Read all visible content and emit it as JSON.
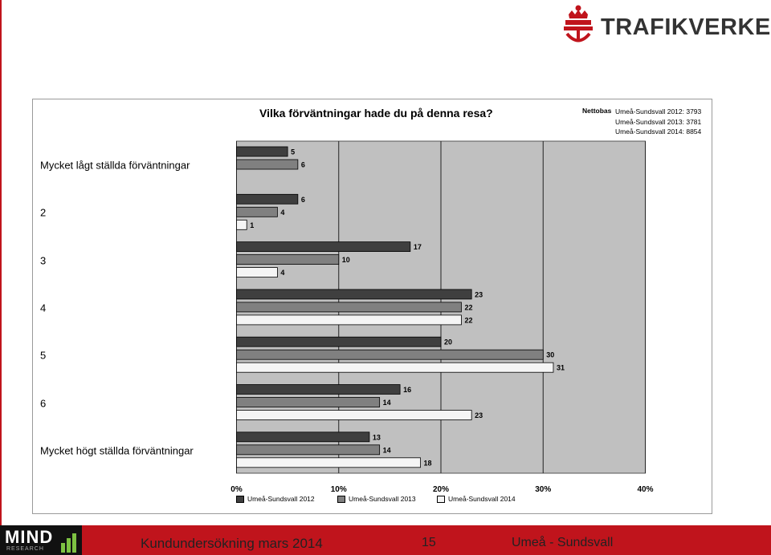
{
  "brand": {
    "logo_text": "TRAFIKVERKET"
  },
  "footer": {
    "mind_logo_text": "MIND",
    "mind_logo_sub": "RESEARCH",
    "title": "Kundundersökning mars 2014",
    "page_number": "15",
    "route": "Umeå - Sundsvall"
  },
  "net_base": {
    "label": "Nettobas",
    "lines": [
      "Umeå-Sundsvall 2012: 3793",
      "Umeå-Sundsvall 2013: 3781",
      "Umeå-Sundsvall 2014: 8854"
    ]
  },
  "colors": {
    "brand_red": "#c0141c",
    "plot_bg": "#c0c0c0",
    "s2012": "#3f3f3f",
    "s2013": "#808080",
    "s2014": "#f5f5f5"
  },
  "chart_data": {
    "type": "bar",
    "orientation": "horizontal",
    "title": "Vilka förväntningar hade du på denna resa?",
    "categories": [
      "Mycket lågt ställda förväntningar",
      "2",
      "3",
      "4",
      "5",
      "6",
      "Mycket högt ställda förväntningar"
    ],
    "series": [
      {
        "name": "Umeå-Sundsvall 2012",
        "values": [
          5,
          6,
          17,
          23,
          20,
          16,
          13
        ]
      },
      {
        "name": "Umeå-Sundsvall 2013",
        "values": [
          6,
          4,
          10,
          22,
          30,
          14,
          14
        ]
      },
      {
        "name": "Umeå-Sundsvall 2014",
        "values": [
          null,
          1,
          4,
          22,
          31,
          23,
          18
        ]
      }
    ],
    "xlim": [
      0,
      40
    ],
    "xticks": [
      "0%",
      "10%",
      "20%",
      "30%",
      "40%"
    ],
    "grid": true,
    "legend": "bottom"
  }
}
